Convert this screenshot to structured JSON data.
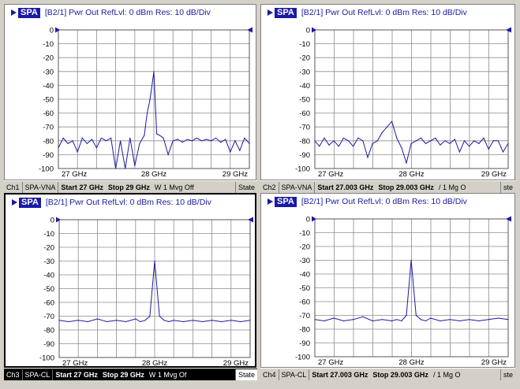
{
  "panels": [
    {
      "badge": "SPA",
      "header": "[B2/1]  Pwr Out RefLvl: 0  dBm Res: 10  dB/Div",
      "yticks": [
        "0",
        "-10",
        "-20",
        "-30",
        "-40",
        "-50",
        "-60",
        "-70",
        "-80",
        "-90",
        "-100"
      ],
      "xticks": [
        "27 GHz",
        "28 GHz",
        "29 GHz"
      ],
      "status": {
        "ch": "Ch1",
        "mode": "SPA-VNA",
        "start": "Start 27 GHz",
        "stop": "Stop 29 GHz",
        "extra": "W 1 Mvg Off",
        "state": "State"
      }
    },
    {
      "badge": "SPA",
      "header": "[B2/1]  Pwr Out RefLvl: 0  dBm Res: 10  dB/Div",
      "yticks": [
        "0",
        "-10",
        "-20",
        "-30",
        "-40",
        "-50",
        "-60",
        "-70",
        "-80",
        "-90",
        "-100"
      ],
      "xticks": [
        "27 GHz",
        "28 GHz",
        "29 GHz"
      ],
      "status": {
        "ch": "Ch2",
        "mode": "SPA-VNA",
        "start": "Start 27.003 GHz",
        "stop": "Stop 29.003 GHz",
        "extra": "/ 1 Mg O",
        "state": "ste"
      }
    },
    {
      "badge": "SPA",
      "header": "[B2/1]  Pwr Out RefLvl: 0  dBm Res: 10  dB/Div",
      "yticks": [
        "0",
        "-10",
        "-20",
        "-30",
        "-40",
        "-50",
        "-60",
        "-70",
        "-80",
        "-90",
        "-100"
      ],
      "xticks": [
        "27 GHz",
        "28 GHz",
        "29 GHz"
      ],
      "status": {
        "ch": "Ch3",
        "mode": "SPA-CL",
        "start": "Start 27 GHz",
        "stop": "Stop 29 GHz",
        "extra": "W 1 Mvg Of",
        "state": "State"
      }
    },
    {
      "badge": "SPA",
      "header": "[B2/1]  Pwr Out RefLvl: 0  dBm Res: 10  dB/Div",
      "yticks": [
        "0",
        "-10",
        "-20",
        "-30",
        "-40",
        "-50",
        "-60",
        "-70",
        "-80",
        "-90",
        "-100"
      ],
      "xticks": [
        "27 GHz",
        "28 GHz",
        "29 GHz"
      ],
      "status": {
        "ch": "Ch4",
        "mode": "SPA-CL",
        "start": "Start 27.003 GHz",
        "stop": "Stop 29.003 GHz",
        "extra": "/ 1 Mg O",
        "state": "ste"
      }
    }
  ],
  "chart_data": [
    {
      "type": "line",
      "ylim": [
        -100,
        0
      ],
      "xlim": [
        27,
        29
      ],
      "x": [
        27,
        27.05,
        27.1,
        27.15,
        27.2,
        27.25,
        27.3,
        27.35,
        27.4,
        27.45,
        27.5,
        27.55,
        27.6,
        27.65,
        27.7,
        27.75,
        27.8,
        27.85,
        27.9,
        27.93,
        27.96,
        28.0,
        28.03,
        28.06,
        28.1,
        28.15,
        28.2,
        28.25,
        28.3,
        28.35,
        28.4,
        28.45,
        28.5,
        28.55,
        28.6,
        28.65,
        28.7,
        28.75,
        28.8,
        28.85,
        28.9,
        28.95,
        29
      ],
      "y": [
        -85,
        -78,
        -82,
        -80,
        -88,
        -78,
        -82,
        -79,
        -85,
        -78,
        -80,
        -78,
        -100,
        -80,
        -100,
        -78,
        -98,
        -82,
        -76,
        -60,
        -50,
        -30,
        -75,
        -76,
        -78,
        -90,
        -80,
        -79,
        -81,
        -79,
        -80,
        -78,
        -80,
        -79,
        -80,
        -78,
        -81,
        -79,
        -88,
        -80,
        -87,
        -78,
        -82
      ]
    },
    {
      "type": "line",
      "ylim": [
        -100,
        0
      ],
      "xlim": [
        27.003,
        29.003
      ],
      "x": [
        27.003,
        27.05,
        27.1,
        27.15,
        27.2,
        27.25,
        27.3,
        27.35,
        27.4,
        27.45,
        27.5,
        27.55,
        27.6,
        27.65,
        27.7,
        27.75,
        27.8,
        27.85,
        27.9,
        27.95,
        28.0,
        28.05,
        28.1,
        28.15,
        28.2,
        28.25,
        28.3,
        28.35,
        28.4,
        28.45,
        28.5,
        28.55,
        28.6,
        28.65,
        28.7,
        28.75,
        28.8,
        28.85,
        28.9,
        28.95,
        29.003
      ],
      "y": [
        -80,
        -84,
        -78,
        -83,
        -80,
        -84,
        -78,
        -80,
        -84,
        -78,
        -80,
        -92,
        -82,
        -80,
        -74,
        -70,
        -66,
        -78,
        -85,
        -96,
        -82,
        -80,
        -78,
        -82,
        -80,
        -78,
        -83,
        -80,
        -82,
        -79,
        -88,
        -80,
        -84,
        -80,
        -82,
        -78,
        -86,
        -80,
        -80,
        -88,
        -82
      ]
    },
    {
      "type": "line",
      "ylim": [
        -100,
        0
      ],
      "xlim": [
        27,
        29
      ],
      "x": [
        27,
        27.1,
        27.2,
        27.3,
        27.4,
        27.5,
        27.6,
        27.7,
        27.8,
        27.85,
        27.9,
        27.95,
        28.0,
        28.05,
        28.1,
        28.15,
        28.2,
        28.3,
        28.4,
        28.5,
        28.6,
        28.7,
        28.8,
        28.9,
        29
      ],
      "y": [
        -73,
        -74,
        -73,
        -74,
        -72,
        -74,
        -73,
        -74,
        -72,
        -74,
        -73,
        -70,
        -30,
        -70,
        -73,
        -74,
        -73,
        -74,
        -73,
        -74,
        -73,
        -74,
        -73,
        -74,
        -73
      ]
    },
    {
      "type": "line",
      "ylim": [
        -100,
        0
      ],
      "xlim": [
        27.003,
        29.003
      ],
      "x": [
        27.003,
        27.1,
        27.2,
        27.3,
        27.4,
        27.5,
        27.6,
        27.7,
        27.8,
        27.85,
        27.9,
        27.95,
        28.0,
        28.05,
        28.1,
        28.15,
        28.2,
        28.3,
        28.4,
        28.5,
        28.6,
        28.7,
        28.8,
        28.9,
        29.003
      ],
      "y": [
        -73,
        -74,
        -72,
        -74,
        -73,
        -71,
        -74,
        -73,
        -74,
        -73,
        -74,
        -70,
        -30,
        -70,
        -73,
        -74,
        -72,
        -74,
        -73,
        -74,
        -73,
        -74,
        -73,
        -72,
        -73
      ]
    }
  ]
}
